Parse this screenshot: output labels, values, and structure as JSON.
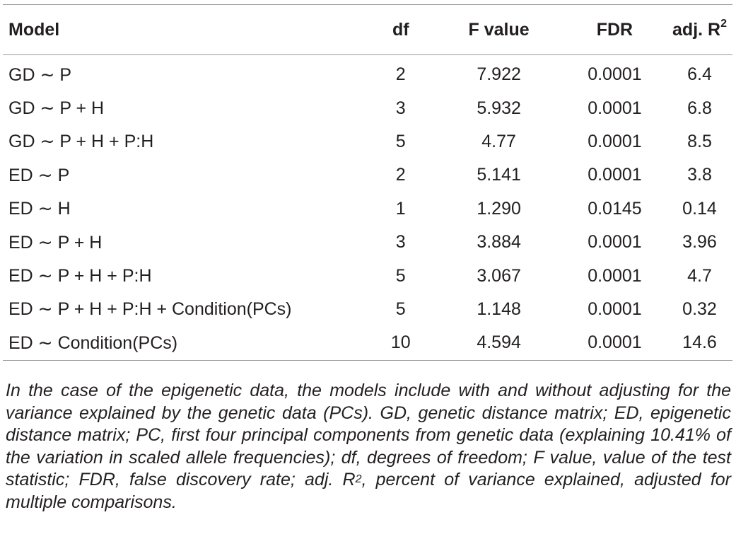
{
  "table": {
    "columns": {
      "model": "Model",
      "df": "df",
      "f_value": "F value",
      "fdr": "FDR",
      "adj_r2": "adj. R",
      "adj_r2_sup": "2"
    },
    "rows": [
      {
        "model": "GD ∼ P",
        "df": "2",
        "f_value": "7.922",
        "fdr": "0.0001",
        "adj_r2": "6.4"
      },
      {
        "model": "GD ∼ P + H",
        "df": "3",
        "f_value": "5.932",
        "fdr": "0.0001",
        "adj_r2": "6.8"
      },
      {
        "model": "GD ∼ P + H + P:H",
        "df": "5",
        "f_value": "4.77",
        "fdr": "0.0001",
        "adj_r2": "8.5"
      },
      {
        "model": "ED ∼ P",
        "df": "2",
        "f_value": "5.141",
        "fdr": "0.0001",
        "adj_r2": "3.8"
      },
      {
        "model": "ED ∼ H",
        "df": "1",
        "f_value": "1.290",
        "fdr": "0.0145",
        "adj_r2": "0.14"
      },
      {
        "model": "ED ∼ P + H",
        "df": "3",
        "f_value": "3.884",
        "fdr": "0.0001",
        "adj_r2": "3.96"
      },
      {
        "model": "ED ∼ P + H + P:H",
        "df": "5",
        "f_value": "3.067",
        "fdr": "0.0001",
        "adj_r2": "4.7"
      },
      {
        "model": "ED ∼ P + H + P:H + Condition(PCs)",
        "df": "5",
        "f_value": "1.148",
        "fdr": "0.0001",
        "adj_r2": "0.32"
      },
      {
        "model": "ED ∼ Condition(PCs)",
        "df": "10",
        "f_value": "4.594",
        "fdr": "0.0001",
        "adj_r2": "14.6"
      }
    ]
  },
  "footnote": {
    "text_before_sup": "In the case of the epigenetic data, the models include with and without adjusting for the variance explained by the genetic data (PCs). GD, genetic distance matrix; ED, epigenetic distance matrix; PC, first four principal components from genetic data (explaining 10.41% of the variation in scaled allele frequencies); df, degrees of freedom; F value, value of the test statistic; FDR, false discovery rate; adj. R",
    "sup": "2",
    "text_after_sup": ", percent of variance explained, adjusted for multiple comparisons."
  }
}
